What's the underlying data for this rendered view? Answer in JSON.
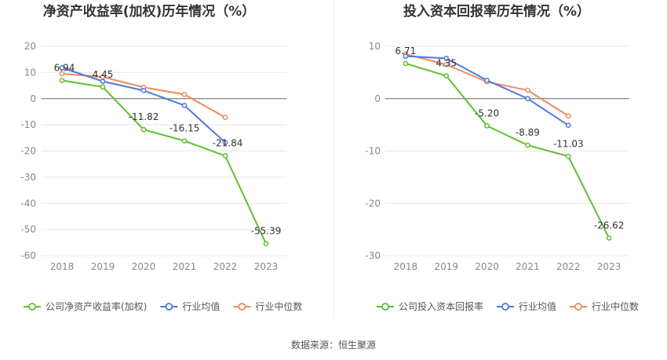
{
  "source_note": "数据来源：恒生聚源",
  "chart_data": [
    {
      "type": "line",
      "title": "净资产收益率(加权)历年情况（%）",
      "categories": [
        "2018",
        "2019",
        "2020",
        "2021",
        "2022",
        "2023"
      ],
      "y_ticks": [
        20,
        10,
        0,
        -10,
        -20,
        -30,
        -40,
        -50,
        -60
      ],
      "ylim": [
        -60,
        20
      ],
      "grid": true,
      "legend_position": "bottom-left",
      "series": [
        {
          "name": "公司净资产收益率(加权)",
          "color": "#5cc12f",
          "values": [
            6.94,
            4.45,
            -11.82,
            -16.15,
            -21.84,
            -55.39
          ],
          "show_labels": true
        },
        {
          "name": "行业均值",
          "color": "#4b7bdc",
          "values": [
            11.8,
            6.6,
            3.1,
            -2.6,
            -16.8,
            null
          ],
          "show_labels": false
        },
        {
          "name": "行业中位数",
          "color": "#f0895e",
          "values": [
            9.5,
            8.3,
            4.3,
            1.6,
            -7.2,
            null
          ],
          "show_labels": false
        }
      ],
      "labels": [
        "6.94",
        "4.45",
        "-11.82",
        "-16.15",
        "-21.84",
        "-55.39"
      ]
    },
    {
      "type": "line",
      "title": "投入资本回报率历年情况（%）",
      "categories": [
        "2018",
        "2019",
        "2020",
        "2021",
        "2022",
        "2023"
      ],
      "y_ticks": [
        10,
        0,
        -10,
        -20,
        -30
      ],
      "ylim": [
        -30,
        10
      ],
      "grid": true,
      "legend_position": "bottom-left",
      "series": [
        {
          "name": "公司投入资本回报率",
          "color": "#5cc12f",
          "values": [
            6.71,
            4.35,
            -5.2,
            -8.89,
            -11.03,
            -26.62
          ],
          "show_labels": true
        },
        {
          "name": "行业均值",
          "color": "#4b7bdc",
          "values": [
            8.1,
            7.7,
            3.5,
            0.0,
            -5.1,
            null
          ],
          "show_labels": false
        },
        {
          "name": "行业中位数",
          "color": "#f0895e",
          "values": [
            8.5,
            6.5,
            3.2,
            1.6,
            -3.3,
            null
          ],
          "show_labels": false
        }
      ],
      "labels": [
        "6.71",
        "4.35",
        "-5.20",
        "-8.89",
        "-11.03",
        "-26.62"
      ]
    }
  ]
}
